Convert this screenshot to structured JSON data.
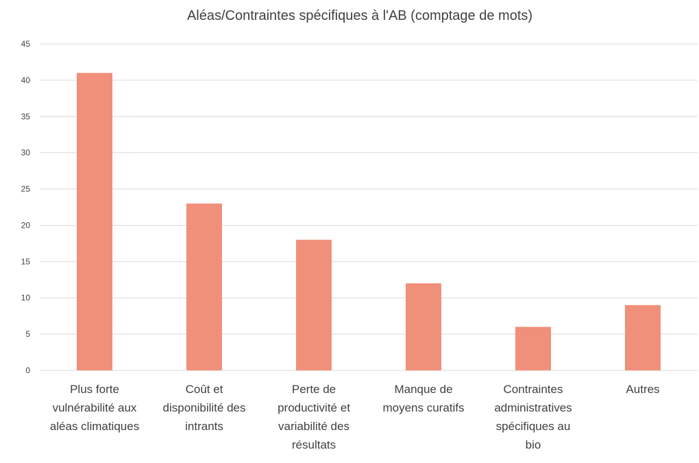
{
  "chart_data": {
    "type": "bar",
    "title": "Aléas/Contraintes spécifiques à l'AB (comptage de mots)",
    "xlabel": "",
    "ylabel": "",
    "ylim": [
      0,
      45
    ],
    "yticks": [
      0,
      5,
      10,
      15,
      20,
      25,
      30,
      35,
      40,
      45
    ],
    "grid": true,
    "legend": "none",
    "bar_color": "#F0907A",
    "grid_color": "#D9D9D9",
    "categories": [
      [
        "Plus forte",
        "vulnérabilité aux",
        "aléas climatiques"
      ],
      [
        "Coût et",
        "disponibilité des",
        "intrants"
      ],
      [
        "Perte de",
        "productivité et",
        "variabilité des",
        "résultats"
      ],
      [
        "Manque de",
        "moyens curatifs"
      ],
      [
        "Contraintes",
        "administratives",
        "spécifiques au",
        "bio"
      ],
      [
        "Autres"
      ]
    ],
    "values": [
      41,
      23,
      18,
      12,
      6,
      9
    ]
  }
}
